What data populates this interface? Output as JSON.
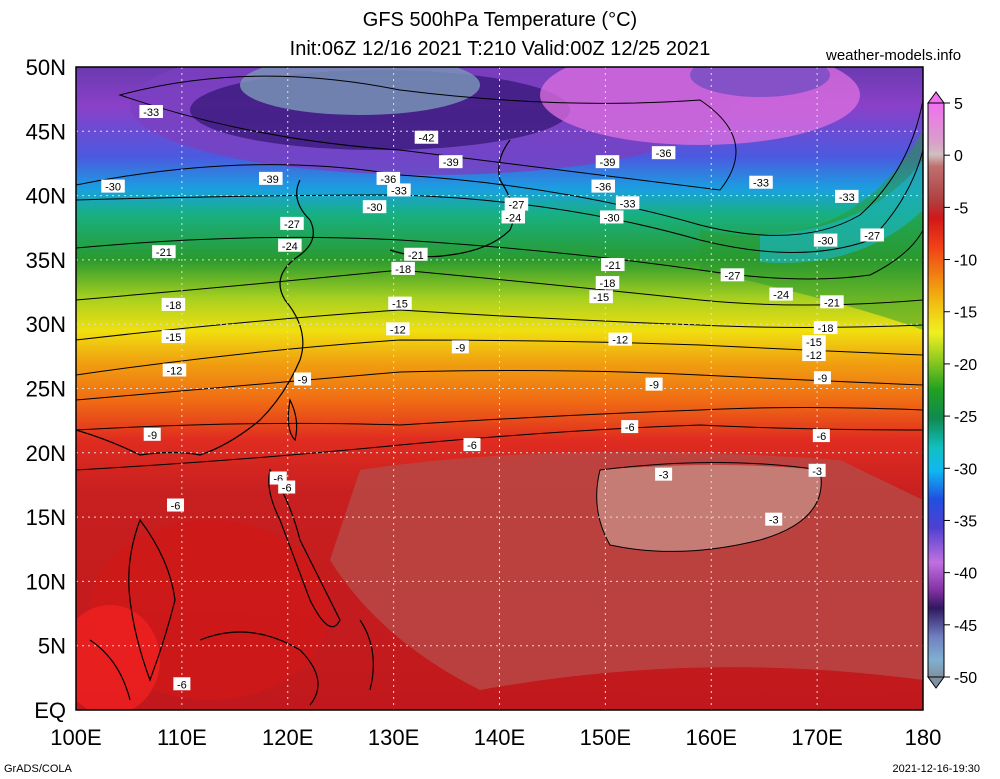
{
  "header": {
    "title_line1": "GFS 500hPa Temperature (°C)",
    "title_line2": "Init:06Z 12/16 2021 T:210 Valid:00Z 12/25 2021",
    "source": "weather-models.info"
  },
  "footer": {
    "left": "GrADS/COLA",
    "right": "2021-12-16-19:30"
  },
  "axes": {
    "lat_labels": [
      "50N",
      "45N",
      "40N",
      "35N",
      "30N",
      "25N",
      "20N",
      "15N",
      "10N",
      "5N",
      "EQ"
    ],
    "lat_values": [
      50,
      45,
      40,
      35,
      30,
      25,
      20,
      15,
      10,
      5,
      0
    ],
    "lon_labels": [
      "100E",
      "110E",
      "120E",
      "130E",
      "140E",
      "150E",
      "160E",
      "170E",
      "180"
    ],
    "lon_values": [
      100,
      110,
      120,
      130,
      140,
      150,
      160,
      170,
      180
    ]
  },
  "colorbar": {
    "labels": [
      "5",
      "0",
      "-5",
      "-10",
      "-15",
      "-20",
      "-25",
      "-30",
      "-35",
      "-40",
      "-45",
      "-50"
    ],
    "values": [
      5,
      0,
      -5,
      -10,
      -15,
      -20,
      -25,
      -30,
      -35,
      -40,
      -45,
      -50
    ]
  },
  "contour_labels": [
    {
      "text": "-33",
      "lon": 107.1,
      "lat": 46.5
    },
    {
      "text": "-42",
      "lon": 133.1,
      "lat": 44.5
    },
    {
      "text": "-39",
      "lon": 135.4,
      "lat": 42.6
    },
    {
      "text": "-39",
      "lon": 150.2,
      "lat": 42.6
    },
    {
      "text": "-36",
      "lon": 155.5,
      "lat": 43.3
    },
    {
      "text": "-30",
      "lon": 103.5,
      "lat": 40.7
    },
    {
      "text": "-39",
      "lon": 118.4,
      "lat": 41.3
    },
    {
      "text": "-36",
      "lon": 129.5,
      "lat": 41.3
    },
    {
      "text": "-33",
      "lon": 130.5,
      "lat": 40.4
    },
    {
      "text": "-36",
      "lon": 149.8,
      "lat": 40.7
    },
    {
      "text": "-33",
      "lon": 152.1,
      "lat": 39.4
    },
    {
      "text": "-33",
      "lon": 164.7,
      "lat": 41.0
    },
    {
      "text": "-33",
      "lon": 172.8,
      "lat": 39.9
    },
    {
      "text": "-30",
      "lon": 128.2,
      "lat": 39.1
    },
    {
      "text": "-27",
      "lon": 141.6,
      "lat": 39.3
    },
    {
      "text": "-24",
      "lon": 141.3,
      "lat": 38.3
    },
    {
      "text": "-30",
      "lon": 150.6,
      "lat": 38.3
    },
    {
      "text": "-27",
      "lon": 120.4,
      "lat": 37.8
    },
    {
      "text": "-24",
      "lon": 120.2,
      "lat": 36.1
    },
    {
      "text": "-30",
      "lon": 170.8,
      "lat": 36.5
    },
    {
      "text": "-27",
      "lon": 175.2,
      "lat": 36.9
    },
    {
      "text": "-21",
      "lon": 108.3,
      "lat": 35.6
    },
    {
      "text": "-21",
      "lon": 132.1,
      "lat": 35.4
    },
    {
      "text": "-18",
      "lon": 130.9,
      "lat": 34.3
    },
    {
      "text": "-21",
      "lon": 150.7,
      "lat": 34.6
    },
    {
      "text": "-18",
      "lon": 150.2,
      "lat": 33.2
    },
    {
      "text": "-27",
      "lon": 162.0,
      "lat": 33.8
    },
    {
      "text": "-24",
      "lon": 166.6,
      "lat": 32.3
    },
    {
      "text": "-21",
      "lon": 171.4,
      "lat": 31.7
    },
    {
      "text": "-18",
      "lon": 109.2,
      "lat": 31.5
    },
    {
      "text": "-15",
      "lon": 130.6,
      "lat": 31.6
    },
    {
      "text": "-15",
      "lon": 149.6,
      "lat": 32.1
    },
    {
      "text": "-12",
      "lon": 130.4,
      "lat": 29.6
    },
    {
      "text": "-18",
      "lon": 170.8,
      "lat": 29.7
    },
    {
      "text": "-15",
      "lon": 109.2,
      "lat": 29.0
    },
    {
      "text": "-12",
      "lon": 151.4,
      "lat": 28.8
    },
    {
      "text": "-15",
      "lon": 169.7,
      "lat": 28.6
    },
    {
      "text": "-9",
      "lon": 136.3,
      "lat": 28.2
    },
    {
      "text": "-12",
      "lon": 169.7,
      "lat": 27.6
    },
    {
      "text": "-12",
      "lon": 109.3,
      "lat": 26.4
    },
    {
      "text": "-9",
      "lon": 121.4,
      "lat": 25.7
    },
    {
      "text": "-9",
      "lon": 154.6,
      "lat": 25.3
    },
    {
      "text": "-9",
      "lon": 170.5,
      "lat": 25.8
    },
    {
      "text": "-6",
      "lon": 152.3,
      "lat": 22.0
    },
    {
      "text": "-9",
      "lon": 107.2,
      "lat": 21.4
    },
    {
      "text": "-6",
      "lon": 170.4,
      "lat": 21.3
    },
    {
      "text": "-6",
      "lon": 137.4,
      "lat": 20.6
    },
    {
      "text": "-3",
      "lon": 155.5,
      "lat": 18.3
    },
    {
      "text": "-3",
      "lon": 170.0,
      "lat": 18.6
    },
    {
      "text": "-6",
      "lon": 119.1,
      "lat": 18.0
    },
    {
      "text": "-6",
      "lon": 119.9,
      "lat": 17.3
    },
    {
      "text": "-6",
      "lon": 109.4,
      "lat": 15.9
    },
    {
      "text": "-3",
      "lon": 165.9,
      "lat": 14.8
    },
    {
      "text": "-6",
      "lon": 110.0,
      "lat": 2.0
    }
  ],
  "colors": {
    "deep_red": "#c0141a",
    "muted_red": "#b84845",
    "warm_red": "#e02c20",
    "orange": "#f06a14",
    "yellow": "#f0e010",
    "green": "#2a9a2e",
    "cyan": "#10c8e0",
    "blue": "#3050e0",
    "purple": "#9a3ad0",
    "dark_purple": "#3a1a7a",
    "grey_blue": "#6a8aa8",
    "pink": "#e060e0"
  }
}
